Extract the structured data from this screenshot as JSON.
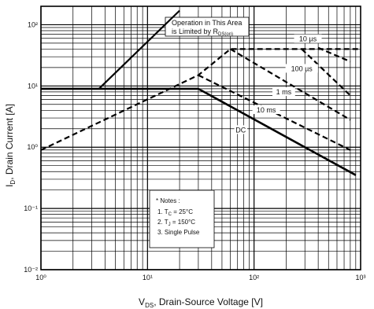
{
  "chart_data": {
    "type": "line",
    "xscale": "log",
    "yscale": "log",
    "xlim": [
      1,
      1000
    ],
    "ylim": [
      0.01,
      200
    ],
    "grid": true,
    "x_ticks": [
      {
        "value": 1,
        "label": "10⁰"
      },
      {
        "value": 10,
        "label": "10¹"
      },
      {
        "value": 100,
        "label": "10²"
      },
      {
        "value": 1000,
        "label": "10³"
      }
    ],
    "y_ticks": [
      {
        "value": 0.01,
        "label": "10⁻²"
      },
      {
        "value": 0.1,
        "label": "10⁻¹"
      },
      {
        "value": 1,
        "label": "10⁰"
      },
      {
        "value": 10,
        "label": "10¹"
      },
      {
        "value": 100,
        "label": "10²"
      }
    ],
    "xlabel": {
      "main": "V",
      "sub": "DS",
      "rest": ", Drain-Source Voltage [V]"
    },
    "ylabel": {
      "main": "I",
      "sub": "D",
      "rest": ", Drain Current [A]"
    },
    "series": [
      {
        "name": "10 µs",
        "style": "dashed",
        "x": [
          400,
          800
        ],
        "y": [
          42,
          25
        ]
      },
      {
        "name": "100 µs",
        "style": "dashed",
        "x": [
          280,
          800
        ],
        "y": [
          40,
          7
        ]
      },
      {
        "name": "1 ms",
        "style": "dashed",
        "x": [
          60,
          800
        ],
        "y": [
          40,
          2.8
        ]
      },
      {
        "name": "10 ms",
        "style": "dashed",
        "x": [
          30,
          800
        ],
        "y": [
          15,
          0.9
        ]
      },
      {
        "name": "DC",
        "style": "solid",
        "x": [
          1,
          30,
          900
        ],
        "y": [
          9,
          9,
          0.35
        ]
      },
      {
        "name": "",
        "style": "dashed",
        "x": [
          1,
          30,
          60,
          1000
        ],
        "y": [
          0.9,
          15,
          40,
          40
        ]
      }
    ],
    "annotations": [
      {
        "text": "10 µs",
        "x": 320,
        "y": 55
      },
      {
        "text": "100 µs",
        "x": 280,
        "y": 18
      },
      {
        "text": "1 ms",
        "x": 190,
        "y": 7.5
      },
      {
        "text": "10 ms",
        "x": 130,
        "y": 3.8
      },
      {
        "text": "DC",
        "x": 75,
        "y": 1.8
      }
    ],
    "limit_box": {
      "line1": "Operation in This Area",
      "line2_main": "is Limited by R",
      "line2_sub": "DS(on)"
    },
    "limit_arrow": {
      "x": [
        3.5,
        20
      ],
      "y": [
        9,
        170
      ]
    },
    "notes": {
      "heading": "* Notes :",
      "n1": {
        "pre": "1. T",
        "sub": "C",
        "post": " = 25°C"
      },
      "n2": {
        "pre": "2. T",
        "sub": "J",
        "post": " = 150°C"
      },
      "n3": "3. Single Pulse"
    }
  }
}
